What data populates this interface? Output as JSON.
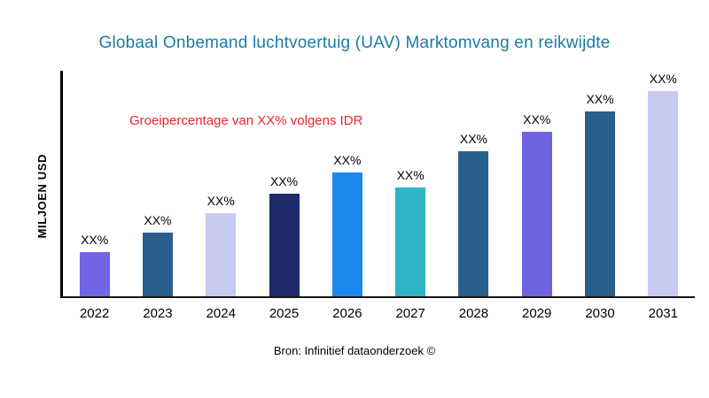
{
  "page": {
    "background": "#ffffff",
    "title_color": "#1b7ba6",
    "annotation_color": "#ea2430"
  },
  "chart_data": {
    "type": "bar",
    "title": "Globaal Onbemand luchtvoertuig (UAV) Marktomvang en reikwijdte",
    "ylabel": "MILJOEN USD",
    "xlabel": "",
    "annotation": "Groeipercentage van XX% volgens IDR",
    "source": "Bron: Infinitief dataonderzoek ©",
    "categories": [
      "2022",
      "2023",
      "2024",
      "2025",
      "2026",
      "2027",
      "2028",
      "2029",
      "2030",
      "2031"
    ],
    "values": [
      50,
      72,
      94,
      116,
      140,
      123,
      164,
      186,
      209,
      232
    ],
    "ylim": [
      0,
      255
    ],
    "bar_labels": [
      "XX%",
      "XX%",
      "XX%",
      "XX%",
      "XX%",
      "XX%",
      "XX%",
      "XX%",
      "XX%",
      "XX%"
    ],
    "bar_colors": [
      "#7165e6",
      "#2a5f8c",
      "#c7cbf1",
      "#202a6b",
      "#1e88ee",
      "#30b4c6",
      "#2a5f8c",
      "#6f63df",
      "#2a5f8c",
      "#c7cbf1"
    ],
    "grid": false,
    "legend": "none"
  }
}
